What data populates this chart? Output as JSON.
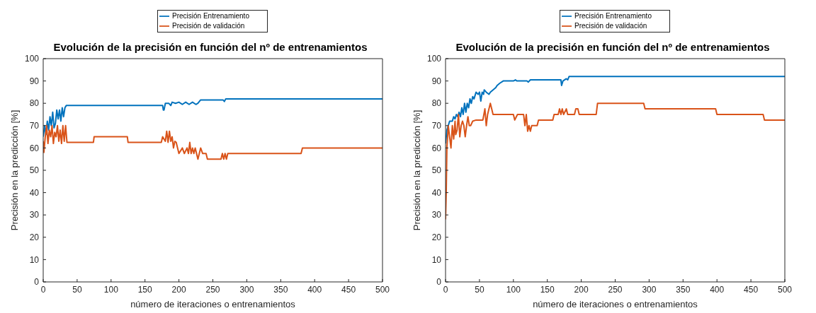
{
  "chart_data": [
    {
      "type": "line",
      "title": "Evolución de la precisión en función del nº de entrenamientos",
      "xlabel": "número de iteraciones o entrenamientos",
      "ylabel": "Precisión en la predicción [%]",
      "xlim": [
        0,
        500
      ],
      "xticks": [
        0,
        50,
        100,
        150,
        200,
        250,
        300,
        350,
        400,
        450,
        500
      ],
      "ylim": [
        0,
        100
      ],
      "yticks": [
        0,
        10,
        20,
        30,
        40,
        50,
        60,
        70,
        80,
        90,
        100
      ],
      "legend": "top",
      "marker": "none",
      "line_style": "solid",
      "series": [
        {
          "name": "Precisión Entrenamiento",
          "color": "#0072bd",
          "x": [
            0,
            2,
            4,
            6,
            8,
            10,
            12,
            14,
            16,
            18,
            20,
            22,
            24,
            26,
            28,
            30,
            32,
            34,
            176,
            177,
            178,
            180,
            185,
            188,
            190,
            195,
            200,
            205,
            210,
            215,
            220,
            225,
            228,
            232,
            265,
            267,
            269,
            500
          ],
          "values": [
            65,
            70,
            66,
            72,
            68,
            74,
            70,
            76,
            69,
            71,
            77,
            73,
            77,
            72,
            78,
            74,
            78,
            79,
            79,
            77,
            77,
            80,
            80,
            79,
            80.5,
            80,
            80.5,
            79.5,
            80.5,
            79.5,
            80.5,
            79.5,
            80,
            81.5,
            81.5,
            80.8,
            82,
            82
          ]
        },
        {
          "name": "Precisión de validación",
          "color": "#d95319",
          "x": [
            0,
            1,
            3,
            5,
            7,
            9,
            11,
            13,
            15,
            17,
            19,
            21,
            23,
            25,
            27,
            29,
            31,
            33,
            35,
            74,
            75,
            124,
            125,
            174,
            176,
            180,
            182,
            184,
            186,
            188,
            190,
            192,
            194,
            196,
            198,
            200,
            205,
            208,
            212,
            214,
            216,
            218,
            220,
            222,
            224,
            228,
            232,
            235,
            240,
            242,
            262,
            264,
            266,
            268,
            270,
            272,
            380,
            382,
            500
          ],
          "values": [
            63,
            58,
            65,
            70,
            62,
            68,
            65,
            70,
            62,
            67,
            65,
            70,
            63,
            68,
            62,
            70,
            63,
            70,
            62.5,
            62.5,
            65,
            65,
            62.5,
            62.5,
            65,
            63,
            67.5,
            62.5,
            67.5,
            63,
            65,
            60,
            63,
            62.5,
            60,
            57.5,
            60,
            57.5,
            60,
            57.5,
            62.5,
            57.5,
            60,
            57.5,
            60,
            55,
            60,
            57.5,
            57.5,
            55,
            55,
            57.5,
            55,
            57.5,
            55,
            57.5,
            57.5,
            60,
            60
          ]
        }
      ]
    },
    {
      "type": "line",
      "title": "Evolución de la precisión en función del nº de entrenamientos",
      "xlabel": "número de iteraciones o entrenamientos",
      "ylabel": "Precisión en la predicción [%]",
      "xlim": [
        0,
        500
      ],
      "xticks": [
        0,
        50,
        100,
        150,
        200,
        250,
        300,
        350,
        400,
        450,
        500
      ],
      "ylim": [
        0,
        100
      ],
      "yticks": [
        0,
        10,
        20,
        30,
        40,
        50,
        60,
        70,
        80,
        90,
        100
      ],
      "legend": "top",
      "marker": "none",
      "line_style": "solid",
      "series": [
        {
          "name": "Precisión Entrenamiento",
          "color": "#0072bd",
          "x": [
            0,
            2,
            4,
            6,
            10,
            12,
            14,
            16,
            18,
            20,
            22,
            24,
            26,
            28,
            30,
            32,
            34,
            36,
            38,
            40,
            42,
            45,
            48,
            50,
            52,
            54,
            56,
            57,
            60,
            64,
            66,
            70,
            74,
            76,
            80,
            85,
            100,
            103,
            105,
            120,
            122,
            125,
            170,
            171,
            173,
            178,
            180,
            182,
            500
          ],
          "values": [
            62,
            68,
            70,
            72,
            72,
            74,
            73,
            75,
            74,
            76,
            74,
            78,
            75,
            80,
            76,
            80,
            78,
            82,
            80,
            83,
            82,
            85,
            84,
            85,
            81,
            85,
            84,
            86,
            85,
            84,
            85,
            86,
            87,
            88,
            89,
            90,
            90,
            90.5,
            90,
            90,
            89.5,
            90.5,
            90.5,
            88,
            90,
            91,
            90.5,
            92,
            92
          ]
        },
        {
          "name": "Precisión de validación",
          "color": "#d95319",
          "x": [
            0,
            1,
            2,
            3,
            4,
            6,
            8,
            10,
            12,
            14,
            15,
            17,
            19,
            21,
            23,
            25,
            27,
            29,
            31,
            33,
            35,
            37,
            40,
            45,
            55,
            58,
            60,
            62,
            64,
            66,
            68,
            70,
            100,
            102,
            106,
            115,
            117,
            119,
            121,
            123,
            125,
            127,
            135,
            137,
            158,
            160,
            166,
            168,
            170,
            172,
            174,
            178,
            180,
            190,
            192,
            195,
            197,
            222,
            224,
            292,
            294,
            398,
            400,
            468,
            470,
            500
          ],
          "values": [
            28,
            40,
            60,
            65,
            70,
            65,
            60,
            70,
            64,
            72,
            66,
            68,
            75,
            65,
            70,
            72,
            70,
            65,
            70,
            74,
            70,
            70,
            72,
            72.5,
            72.5,
            77.5,
            70,
            75,
            77.5,
            80,
            77.5,
            75,
            75,
            72.5,
            75,
            75,
            70,
            75,
            67.5,
            70,
            67.5,
            70,
            70,
            72.5,
            72.5,
            75,
            75,
            77.5,
            75,
            77.5,
            75,
            77.5,
            75,
            75,
            77.5,
            77.5,
            75,
            75,
            80,
            80,
            77.5,
            77.5,
            75,
            75,
            72.5,
            72.5
          ]
        }
      ]
    }
  ]
}
